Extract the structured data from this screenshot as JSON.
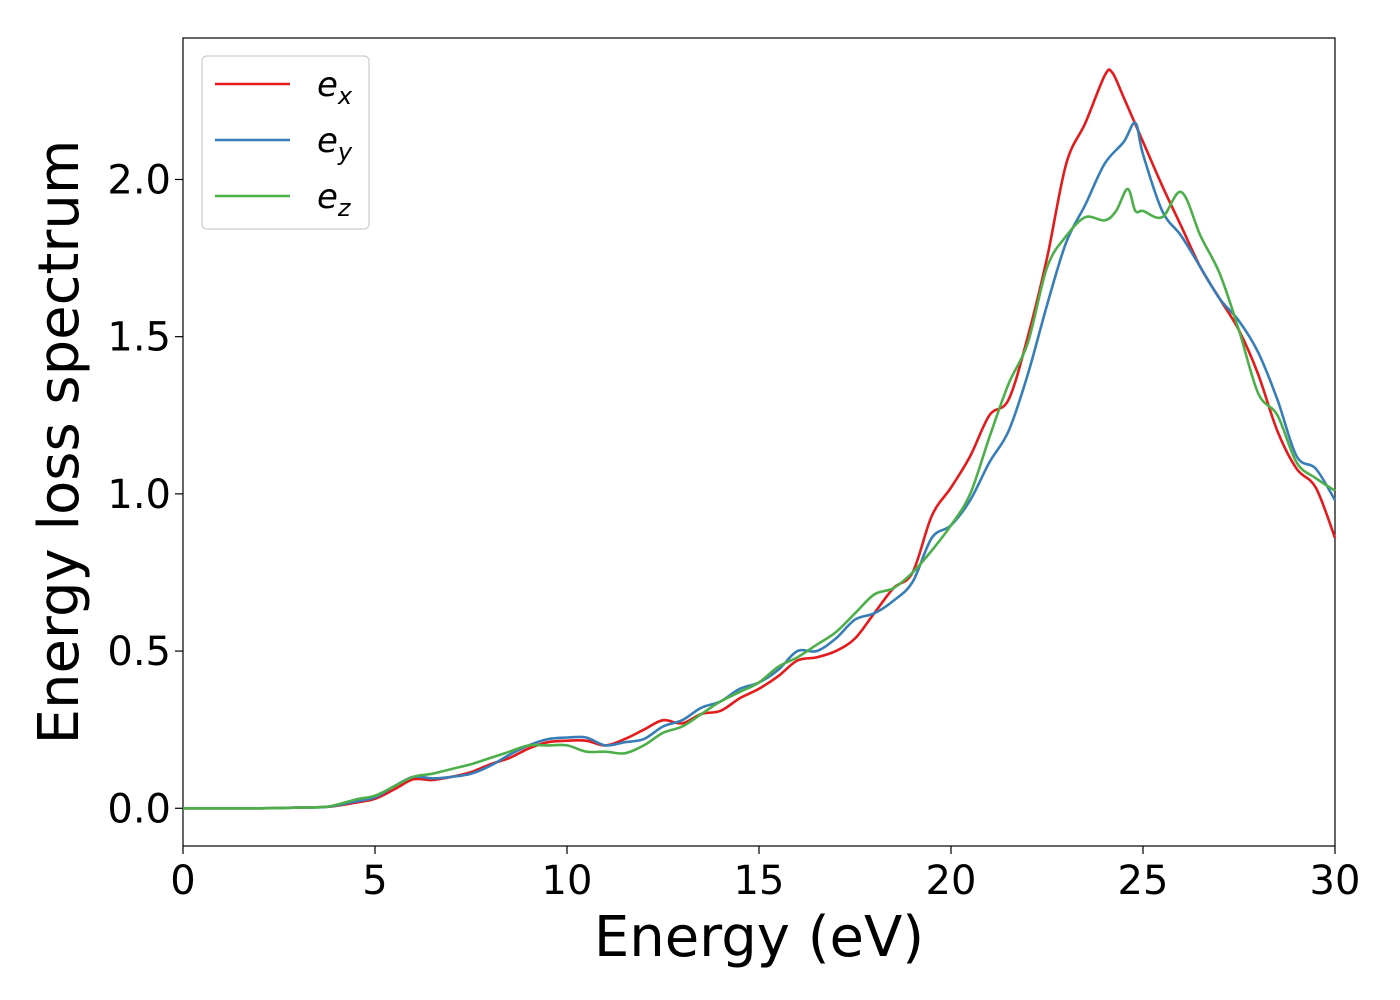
{
  "chart_data": {
    "type": "line",
    "title": "",
    "xlabel": "Energy (eV)",
    "ylabel": "Energy loss spectrum",
    "xlim": [
      0,
      30
    ],
    "ylim": [
      -0.12,
      2.45
    ],
    "xticks": [
      0,
      5,
      10,
      15,
      20,
      25,
      30
    ],
    "xtick_labels": [
      "0",
      "5",
      "10",
      "15",
      "20",
      "25",
      "30"
    ],
    "yticks": [
      0.0,
      0.5,
      1.0,
      1.5,
      2.0
    ],
    "ytick_labels": [
      "0.0",
      "0.5",
      "1.0",
      "1.5",
      "2.0"
    ],
    "grid": false,
    "legend_position": "top-left",
    "series": [
      {
        "name": "e_x",
        "legend_base": "e",
        "legend_sub": "x",
        "color": "#e41a1c",
        "x": [
          0,
          1,
          2,
          3,
          3.8,
          4.5,
          5,
          5.5,
          6,
          6.5,
          7,
          7.5,
          8,
          8.5,
          9,
          9.5,
          10,
          10.5,
          11,
          11.5,
          12,
          12.5,
          13,
          13.5,
          14,
          14.5,
          15,
          15.5,
          16,
          16.5,
          17,
          17.5,
          18,
          18.5,
          19,
          19.5,
          20,
          20.5,
          21,
          21.5,
          22,
          22.5,
          23,
          23.5,
          24,
          24.2,
          24.5,
          25,
          25.5,
          26,
          26.5,
          27,
          27.5,
          28,
          28.5,
          29,
          29.5,
          30
        ],
        "y": [
          0,
          0,
          0,
          0.002,
          0.005,
          0.018,
          0.03,
          0.06,
          0.092,
          0.09,
          0.1,
          0.115,
          0.14,
          0.16,
          0.19,
          0.21,
          0.215,
          0.215,
          0.2,
          0.22,
          0.25,
          0.28,
          0.27,
          0.3,
          0.31,
          0.35,
          0.38,
          0.42,
          0.47,
          0.48,
          0.5,
          0.54,
          0.62,
          0.7,
          0.75,
          0.93,
          1.02,
          1.12,
          1.25,
          1.3,
          1.5,
          1.75,
          2.05,
          2.18,
          2.33,
          2.34,
          2.26,
          2.12,
          1.98,
          1.85,
          1.72,
          1.62,
          1.52,
          1.38,
          1.2,
          1.08,
          1.02,
          0.86
        ]
      },
      {
        "name": "e_y",
        "legend_base": "e",
        "legend_sub": "y",
        "color": "#377eb8",
        "x": [
          0,
          1,
          2,
          3,
          3.8,
          4.5,
          5,
          5.5,
          6,
          6.5,
          7,
          7.5,
          8,
          8.5,
          9,
          9.5,
          10,
          10.5,
          11,
          11.5,
          12,
          12.5,
          13,
          13.5,
          14,
          14.5,
          15,
          15.5,
          16,
          16.5,
          17,
          17.5,
          18,
          18.5,
          19,
          19.5,
          20,
          20.5,
          21,
          21.5,
          22,
          22.5,
          23,
          23.5,
          24,
          24.5,
          24.8,
          25,
          25.5,
          26,
          26.5,
          27,
          27.5,
          28,
          28.5,
          29,
          29.5,
          30
        ],
        "y": [
          0,
          0,
          0,
          0.002,
          0.005,
          0.022,
          0.035,
          0.07,
          0.1,
          0.095,
          0.1,
          0.11,
          0.135,
          0.17,
          0.2,
          0.22,
          0.225,
          0.225,
          0.2,
          0.21,
          0.22,
          0.26,
          0.28,
          0.32,
          0.34,
          0.38,
          0.4,
          0.44,
          0.5,
          0.5,
          0.54,
          0.6,
          0.62,
          0.66,
          0.72,
          0.86,
          0.9,
          0.98,
          1.1,
          1.2,
          1.38,
          1.6,
          1.8,
          1.92,
          2.05,
          2.12,
          2.18,
          2.08,
          1.9,
          1.82,
          1.72,
          1.62,
          1.55,
          1.45,
          1.3,
          1.12,
          1.08,
          0.98
        ]
      },
      {
        "name": "e_z",
        "legend_base": "e",
        "legend_sub": "z",
        "color": "#4daf4a",
        "x": [
          0,
          1,
          2,
          3,
          3.8,
          4.5,
          5,
          5.5,
          6,
          6.5,
          7,
          7.5,
          8,
          8.5,
          9,
          9.5,
          10,
          10.5,
          11,
          11.5,
          12,
          12.5,
          13,
          13.5,
          14,
          14.5,
          15,
          15.5,
          16,
          16.5,
          17,
          17.5,
          18,
          18.5,
          19,
          19.5,
          20,
          20.5,
          21,
          21.5,
          22,
          22.5,
          23,
          23.5,
          24,
          24.3,
          24.6,
          24.8,
          25,
          25.5,
          26,
          26.5,
          27,
          27.5,
          28,
          28.5,
          29,
          29.5,
          30
        ],
        "y": [
          0,
          0,
          0,
          0.002,
          0.006,
          0.028,
          0.04,
          0.07,
          0.1,
          0.11,
          0.125,
          0.14,
          0.16,
          0.18,
          0.2,
          0.2,
          0.2,
          0.18,
          0.18,
          0.175,
          0.2,
          0.24,
          0.26,
          0.3,
          0.34,
          0.37,
          0.4,
          0.45,
          0.48,
          0.52,
          0.56,
          0.62,
          0.68,
          0.7,
          0.75,
          0.82,
          0.9,
          1.0,
          1.18,
          1.35,
          1.48,
          1.72,
          1.82,
          1.88,
          1.87,
          1.9,
          1.97,
          1.9,
          1.9,
          1.88,
          1.96,
          1.82,
          1.7,
          1.52,
          1.32,
          1.25,
          1.1,
          1.05,
          1.01
        ]
      }
    ]
  }
}
